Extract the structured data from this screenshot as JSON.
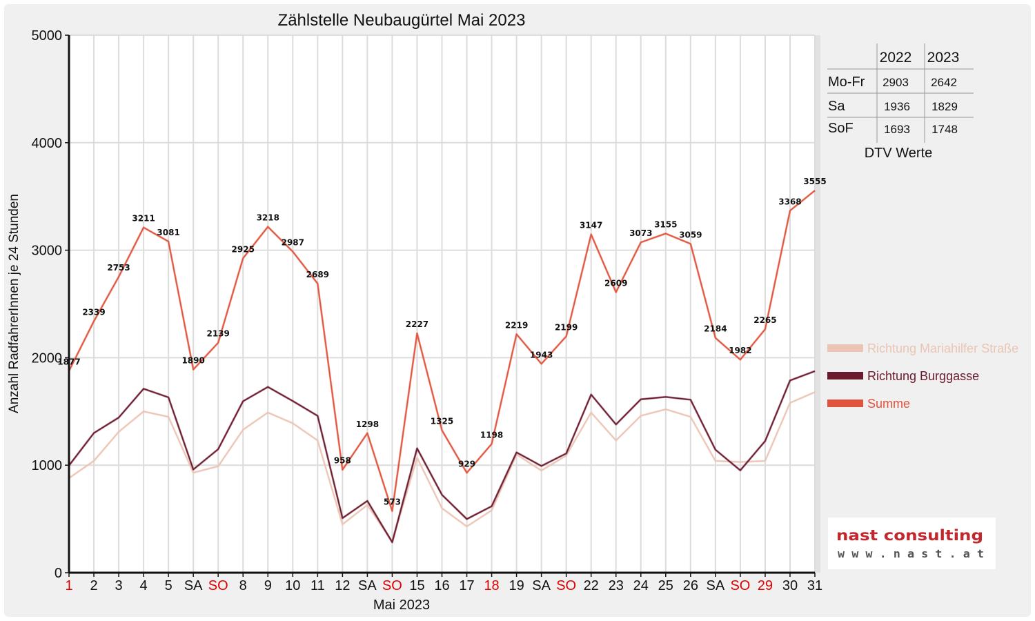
{
  "chart_data": {
    "type": "line",
    "title": "Zählstelle Neubaugürtel Mai 2023",
    "xlabel": "Mai 2023",
    "ylabel": "Anzahl RadfahrerInnen je 24 Stunden",
    "ylim": [
      0,
      5000
    ],
    "yticks": [
      0,
      1000,
      2000,
      3000,
      4000,
      5000
    ],
    "grid": true,
    "legend_position": "right",
    "categories": [
      "1",
      "2",
      "3",
      "4",
      "5",
      "SA",
      "SO",
      "8",
      "9",
      "10",
      "11",
      "12",
      "SA",
      "SO",
      "15",
      "16",
      "17",
      "18",
      "19",
      "SA",
      "SO",
      "22",
      "23",
      "24",
      "25",
      "26",
      "SA",
      "SO",
      "29",
      "30",
      "31"
    ],
    "category_colors": [
      "#e00000",
      "#111111",
      "#111111",
      "#111111",
      "#111111",
      "#111111",
      "#e00000",
      "#111111",
      "#111111",
      "#111111",
      "#111111",
      "#111111",
      "#111111",
      "#e00000",
      "#111111",
      "#111111",
      "#111111",
      "#e00000",
      "#111111",
      "#111111",
      "#e00000",
      "#111111",
      "#111111",
      "#111111",
      "#111111",
      "#111111",
      "#111111",
      "#e00000",
      "#e00000",
      "#111111",
      "#111111"
    ],
    "series": [
      {
        "name": "Richtung Mariahilfer Straße",
        "color": "#ebc4b4",
        "values": [
          880,
          1040,
          1310,
          1500,
          1450,
          930,
          990,
          1330,
          1490,
          1390,
          1230,
          450,
          630,
          290,
          1070,
          600,
          430,
          580,
          1100,
          950,
          1090,
          1490,
          1230,
          1460,
          1520,
          1450,
          1040,
          1030,
          1040,
          1580,
          1680
        ]
      },
      {
        "name": "Richtung Burggasse",
        "color": "#6b1a2e",
        "values": [
          997,
          1299,
          1443,
          1711,
          1631,
          960,
          1149,
          1595,
          1728,
          1597,
          1459,
          508,
          668,
          283,
          1157,
          725,
          499,
          618,
          1119,
          993,
          1109,
          1657,
          1379,
          1613,
          1635,
          1609,
          1144,
          952,
          1225,
          1788,
          1875
        ]
      },
      {
        "name": "Summe",
        "color": "#e0533c",
        "values": [
          1877,
          2339,
          2753,
          3211,
          3081,
          1890,
          2139,
          2925,
          3218,
          2987,
          2689,
          958,
          1298,
          573,
          2227,
          1325,
          929,
          1198,
          2219,
          1943,
          2199,
          3147,
          2609,
          3073,
          3155,
          3059,
          2184,
          1982,
          2265,
          3368,
          3555
        ]
      }
    ]
  },
  "dtv_table": {
    "headers": [
      "",
      "2022",
      "2023"
    ],
    "rows": [
      {
        "label": "Mo-Fr",
        "v2022": "2903",
        "v2023": "2642"
      },
      {
        "label": "Sa",
        "v2022": "1936",
        "v2023": "1829"
      },
      {
        "label": "SoF",
        "v2022": "1693",
        "v2023": "1748"
      }
    ],
    "caption": "DTV Werte"
  },
  "logo": {
    "name": "nast consulting",
    "url": "w w w . n a s t . a t"
  }
}
